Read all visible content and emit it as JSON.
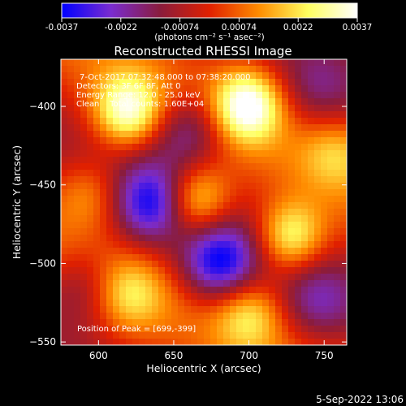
{
  "chart_data": {
    "type": "heatmap",
    "title": "Reconstructed RHESSI Image",
    "xlabel": "Heliocentric X (arcsec)",
    "ylabel": "Heliocentric Y (arcsec)",
    "xlim": [
      575,
      765
    ],
    "ylim": [
      -552,
      -370
    ],
    "x_ticks": [
      600,
      650,
      700,
      750
    ],
    "y_ticks": [
      -400,
      -450,
      -500,
      -550
    ],
    "colorbar": {
      "ticks": [
        "-0.0037",
        "-0.0022",
        "-0.00074",
        "0.00074",
        "0.0022",
        "0.0037"
      ],
      "min": -0.0037,
      "max": 0.0037,
      "units": "(photons cm⁻² s⁻¹ asec⁻²)",
      "colors": [
        "#0000ff",
        "#7a2cd0",
        "#8a1c3c",
        "#e02000",
        "#ff8c00",
        "#ffff60",
        "#ffffff"
      ]
    },
    "info_lines": [
      "7-Oct-2017 07:32:48.000 to 07:38:20.000",
      "Detectors: 3F 6F 8F, Att 0",
      "Energy Range: 12.0 - 25.0 keV",
      "Clean    Total counts: 1.60E+04"
    ],
    "peak_label": "Position of Peak = [699,-399]",
    "peak": [
      699,
      -399
    ],
    "sources": [
      {
        "x": 699,
        "y": -399,
        "value": 0.0037
      },
      {
        "x": 619,
        "y": -403,
        "value": 0.0034
      },
      {
        "x": 665,
        "y": -460,
        "value": 0.003
      },
      {
        "x": 728,
        "y": -483,
        "value": 0.0031
      },
      {
        "x": 595,
        "y": -455,
        "value": 0.0015
      },
      {
        "x": 620,
        "y": -520,
        "value": 0.0018
      },
      {
        "x": 700,
        "y": -532,
        "value": 0.002
      },
      {
        "x": 758,
        "y": -430,
        "value": 0.0014
      }
    ],
    "minima": [
      {
        "x": 660,
        "y": -415,
        "value": -0.0022
      },
      {
        "x": 635,
        "y": -462,
        "value": -0.003
      },
      {
        "x": 680,
        "y": -500,
        "value": -0.0034
      },
      {
        "x": 745,
        "y": -525,
        "value": -0.0016
      },
      {
        "x": 590,
        "y": -515,
        "value": -0.0015
      },
      {
        "x": 745,
        "y": -390,
        "value": -0.0012
      }
    ]
  },
  "timestamp": "5-Sep-2022 13:06"
}
